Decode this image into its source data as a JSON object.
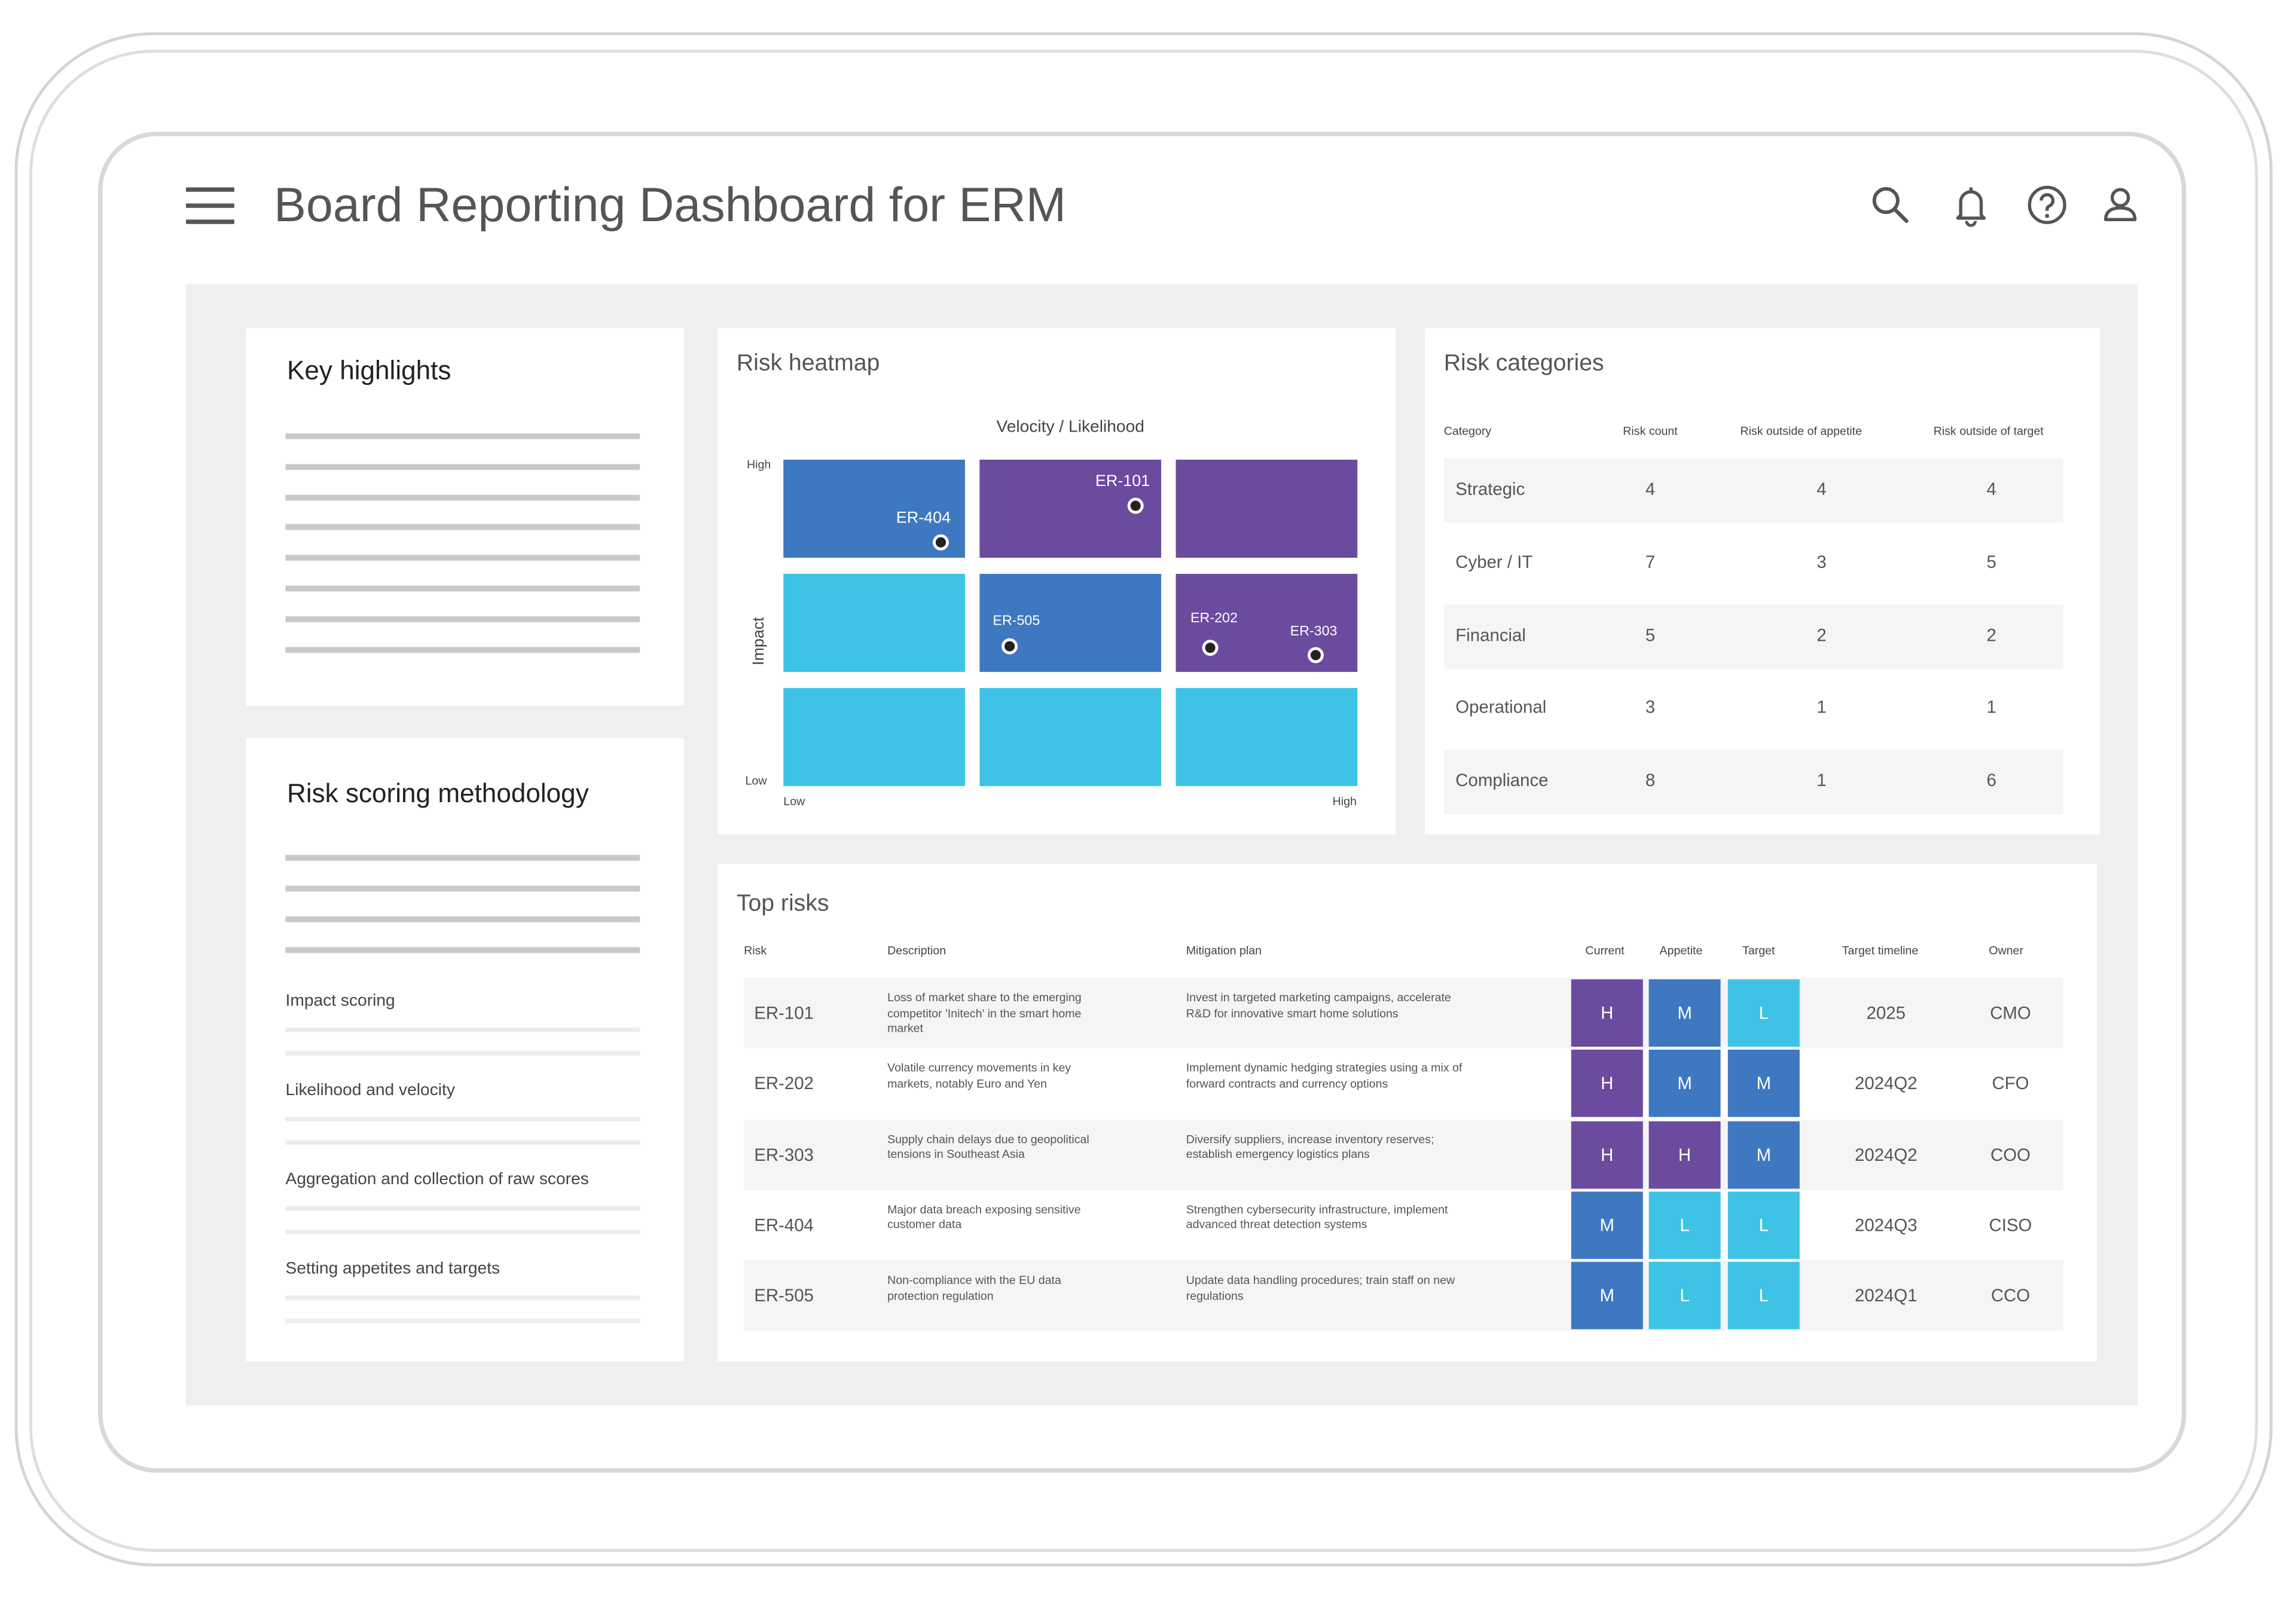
{
  "header": {
    "title": "Board Reporting Dashboard for ERM"
  },
  "colors": {
    "high": "#6a4b9e",
    "medium": "#3e78c0",
    "low": "#3ec3e6"
  },
  "key_highlights": {
    "title": "Key highlights"
  },
  "methodology": {
    "title": "Risk scoring methodology",
    "sections": [
      "Impact scoring",
      "Likelihood and velocity",
      "Aggregation and collection of raw scores",
      "Setting appetites and targets"
    ]
  },
  "heatmap": {
    "title": "Risk heatmap",
    "x_title": "Velocity / Likelihood",
    "y_title": "Impact",
    "y_high": "High",
    "y_low": "Low",
    "x_low": "Low",
    "x_high": "High",
    "grid": [
      [
        "M",
        "H",
        "H"
      ],
      [
        "L",
        "M",
        "H"
      ],
      [
        "L",
        "L",
        "L"
      ]
    ],
    "markers": [
      {
        "label": "ER-404",
        "row": 0,
        "col": 0
      },
      {
        "label": "ER-101",
        "row": 0,
        "col": 1
      },
      {
        "label": "ER-505",
        "row": 1,
        "col": 1
      },
      {
        "label": "ER-202",
        "row": 1,
        "col": 2
      },
      {
        "label": "ER-303",
        "row": 1,
        "col": 2
      }
    ]
  },
  "categories": {
    "title": "Risk categories",
    "headers": [
      "Category",
      "Risk count",
      "Risk outside of appetite",
      "Risk outside of target"
    ],
    "rows": [
      [
        "Strategic",
        "4",
        "4",
        "4"
      ],
      [
        "Cyber / IT",
        "7",
        "3",
        "5"
      ],
      [
        "Financial",
        "5",
        "2",
        "2"
      ],
      [
        "Operational",
        "3",
        "1",
        "1"
      ],
      [
        "Compliance",
        "8",
        "1",
        "6"
      ]
    ]
  },
  "top_risks": {
    "title": "Top risks",
    "headers": [
      "Risk",
      "Description",
      "Mitigation plan",
      "Current",
      "Appetite",
      "Target",
      "Target timeline",
      "Owner"
    ],
    "rows": [
      {
        "risk": "ER-101",
        "description": "Loss of market share to the emerging competitor 'Initech' in the smart home market",
        "mitigation": "Invest in targeted marketing campaigns, accelerate R&D for innovative smart home solutions",
        "current": "H",
        "appetite": "M",
        "target": "L",
        "timeline": "2025",
        "owner": "CMO"
      },
      {
        "risk": "ER-202",
        "description": "Volatile currency movements in key markets, notably Euro and Yen",
        "mitigation": "Implement dynamic hedging strategies using a mix of forward contracts and currency options",
        "current": "H",
        "appetite": "M",
        "target": "M",
        "timeline": "2024Q2",
        "owner": "CFO"
      },
      {
        "risk": "ER-303",
        "description": "Supply chain delays due to geopolitical tensions in Southeast Asia",
        "mitigation": "Diversify suppliers, increase inventory reserves; establish emergency logistics plans",
        "current": "H",
        "appetite": "H",
        "target": "M",
        "timeline": "2024Q2",
        "owner": "COO"
      },
      {
        "risk": "ER-404",
        "description": "Major data breach exposing sensitive customer data",
        "mitigation": "Strengthen cybersecurity infrastructure, implement advanced threat detection systems",
        "current": "M",
        "appetite": "L",
        "target": "L",
        "timeline": "2024Q3",
        "owner": "CISO"
      },
      {
        "risk": "ER-505",
        "description": "Non-compliance with the EU data protection regulation",
        "mitigation": "Update data handling procedures; train staff on new regulations",
        "current": "M",
        "appetite": "L",
        "target": "L",
        "timeline": "2024Q1",
        "owner": "CCO"
      }
    ]
  }
}
